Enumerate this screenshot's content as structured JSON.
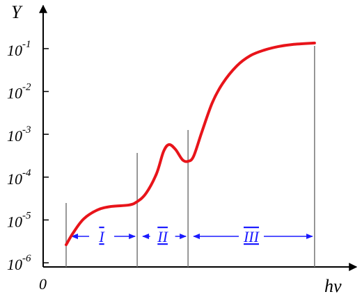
{
  "chart_data": {
    "type": "line",
    "y_label": "Y",
    "x_label": "hν",
    "origin_label": "0",
    "log_y": true,
    "xlim": [
      0,
      100
    ],
    "ylim": [
      8e-07,
      0.6
    ],
    "yticks": [
      {
        "value": 0.1,
        "label": {
          "base": "10",
          "exponent": "-1"
        }
      },
      {
        "value": 0.01,
        "label": {
          "base": "10",
          "exponent": "-2"
        }
      },
      {
        "value": 0.001,
        "label": {
          "base": "10",
          "exponent": "-3"
        }
      },
      {
        "value": 0.0001,
        "label": {
          "base": "10",
          "exponent": "-4"
        }
      },
      {
        "value": 1e-05,
        "label": {
          "base": "10",
          "exponent": "-5"
        }
      },
      {
        "value": 1e-06,
        "label": {
          "base": "10",
          "exponent": "-6"
        }
      }
    ],
    "series": [
      {
        "color": "#e8141a",
        "x": [
          7.5,
          9.8,
          13.2,
          17.7,
          22.3,
          28,
          30.7,
          33.6,
          37,
          39.3,
          41.1,
          43.2,
          45.5,
          47.3,
          49.1,
          51.8,
          55.2,
          58.6,
          63.2,
          67.7,
          72.3,
          76.8,
          81.4,
          88.6
        ],
        "values": [
          2.64e-06,
          4.99e-06,
          1.05e-05,
          1.71e-05,
          2.07e-05,
          2.23e-05,
          2.68e-05,
          4.2e-05,
          0.00012,
          0.000396,
          0.000575,
          0.000443,
          0.000253,
          0.000234,
          0.000305,
          0.00113,
          0.00542,
          0.0154,
          0.0393,
          0.0689,
          0.0929,
          0.112,
          0.125,
          0.135
        ]
      }
    ],
    "boundaries": {
      "color": "#777777",
      "x": [
        7.5,
        30.7,
        47.3,
        88.6
      ],
      "values": [
        2.49e-05,
        0.000367,
        0.00126,
        0.116
      ]
    },
    "regions": {
      "color": "#1a1aff",
      "labels": [
        "I",
        "II",
        "III"
      ]
    }
  }
}
